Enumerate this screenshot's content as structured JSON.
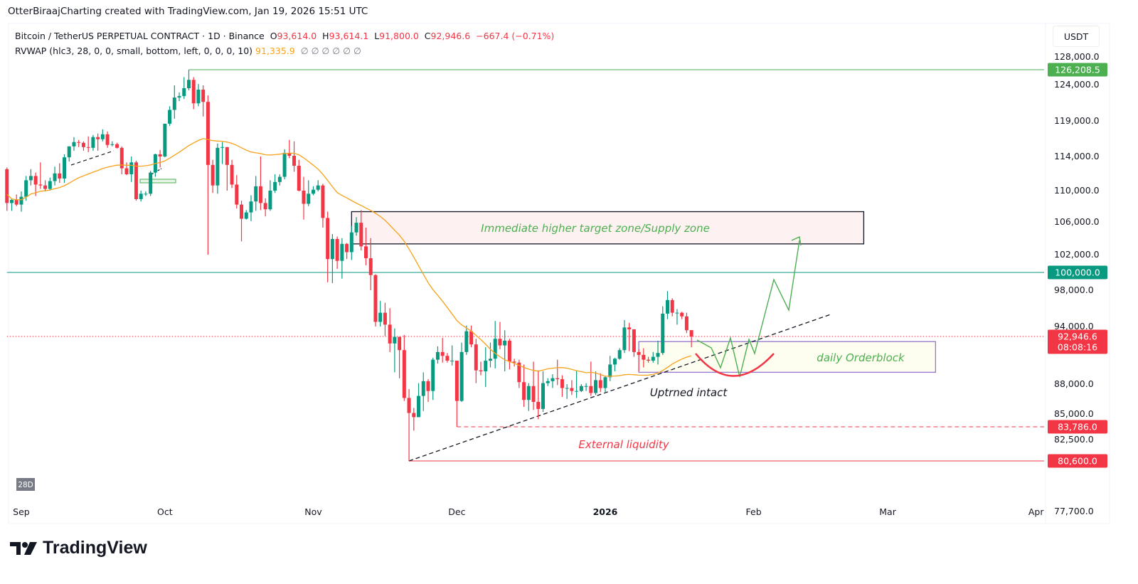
{
  "credit": "OtterBiraajCharting created with TradingView.com, Jan 19, 2026 15:51 UTC",
  "legend": {
    "symbol": "Bitcoin / TetherUS PERPETUAL CONTRACT · 1D · Binance",
    "o_label": "O",
    "o": "93,614.0",
    "h_label": "H",
    "h": "93,614.1",
    "l_label": "L",
    "l": "91,800.0",
    "c_label": "C",
    "c": "92,946.6",
    "change": "−667.4 (−0.71%)",
    "indicator": "RVWAP (hlc3, 28, 0, 0, small, bottom, left, 0, 0, 0, 10)",
    "indicator_value": "91,335.9",
    "indicator_empty": "∅  ∅  ∅  ∅  ∅  ∅"
  },
  "currency_button": "USDT",
  "period_badge": "28D",
  "logo_text": "TradingView",
  "chart_data": {
    "type": "candlestick",
    "title": "Bitcoin / TetherUS PERPETUAL CONTRACT · 1D · Binance",
    "y_scale": "log",
    "y_range": [
      77700,
      128000
    ],
    "x_range": [
      "2025-08-29",
      "2026-04-05"
    ],
    "grid": false,
    "colors": {
      "up": "#089981",
      "down": "#f23645",
      "rvwap": "#f7a21b"
    },
    "price_ticks": [
      "128,000.0",
      "124,000.0",
      "119,000.0",
      "114,000.0",
      "110,000.0",
      "106,000.0",
      "102,000.0",
      "98,000.0",
      "94,000.0",
      "88,000.0",
      "85,000.0",
      "82,500.0",
      "77,700.0"
    ],
    "price_tick_values": [
      128000,
      124000,
      119000,
      114000,
      110000,
      106000,
      102000,
      98000,
      94000,
      88000,
      85000,
      82500,
      77700
    ],
    "time_ticks": [
      {
        "label": "Sep",
        "date": "2025-09-01",
        "bold": false
      },
      {
        "label": "Oct",
        "date": "2025-10-01",
        "bold": false
      },
      {
        "label": "Nov",
        "date": "2025-11-01",
        "bold": false
      },
      {
        "label": "Dec",
        "date": "2025-12-01",
        "bold": false
      },
      {
        "label": "2026",
        "date": "2026-01-01",
        "bold": true
      },
      {
        "label": "Feb",
        "date": "2026-02-01",
        "bold": false
      },
      {
        "label": "Mar",
        "date": "2026-03-01",
        "bold": false
      },
      {
        "label": "Apr",
        "date": "2026-04-01",
        "bold": false
      }
    ],
    "candles_columns": [
      "date",
      "open",
      "high",
      "low",
      "close"
    ],
    "candles": [
      [
        "2025-08-29",
        112500,
        112700,
        107400,
        108400
      ],
      [
        "2025-08-30",
        108400,
        108900,
        107400,
        108800
      ],
      [
        "2025-08-31",
        108800,
        109500,
        108000,
        108200
      ],
      [
        "2025-09-01",
        108200,
        109900,
        107300,
        109200
      ],
      [
        "2025-09-02",
        109200,
        111700,
        108700,
        111200
      ],
      [
        "2025-09-03",
        111200,
        112500,
        110600,
        111700
      ],
      [
        "2025-09-04",
        111700,
        112100,
        109300,
        110700
      ],
      [
        "2025-09-05",
        110700,
        113300,
        110200,
        110600
      ],
      [
        "2025-09-06",
        110600,
        111200,
        109900,
        110200
      ],
      [
        "2025-09-07",
        110200,
        111500,
        110000,
        111100
      ],
      [
        "2025-09-08",
        111100,
        112800,
        110600,
        112000
      ],
      [
        "2025-09-09",
        112000,
        113200,
        110900,
        111400
      ],
      [
        "2025-09-10",
        111400,
        114300,
        110900,
        113900
      ],
      [
        "2025-09-11",
        113900,
        115400,
        113400,
        115400
      ],
      [
        "2025-09-12",
        115400,
        116700,
        114800,
        116000
      ],
      [
        "2025-09-13",
        116000,
        116300,
        115300,
        115900
      ],
      [
        "2025-09-14",
        115900,
        116100,
        114800,
        115300
      ],
      [
        "2025-09-15",
        115300,
        116800,
        114600,
        115200
      ],
      [
        "2025-09-16",
        115200,
        117000,
        114800,
        116700
      ],
      [
        "2025-09-17",
        116700,
        117200,
        114800,
        116400
      ],
      [
        "2025-09-18",
        116400,
        117800,
        116100,
        117100
      ],
      [
        "2025-09-19",
        117100,
        117500,
        115200,
        115600
      ],
      [
        "2025-09-20",
        115600,
        116100,
        115400,
        115700
      ],
      [
        "2025-09-21",
        115700,
        115900,
        115100,
        115200
      ],
      [
        "2025-09-22",
        115200,
        115400,
        111900,
        112600
      ],
      [
        "2025-09-23",
        112600,
        113300,
        111800,
        111900
      ],
      [
        "2025-09-24",
        111900,
        114000,
        111000,
        113300
      ],
      [
        "2025-09-25",
        113300,
        113500,
        108700,
        108900
      ],
      [
        "2025-09-26",
        108900,
        110000,
        108600,
        109600
      ],
      [
        "2025-09-27",
        109600,
        109900,
        109300,
        109600
      ],
      [
        "2025-09-28",
        109600,
        112300,
        109300,
        112100
      ],
      [
        "2025-09-29",
        112100,
        114400,
        111600,
        114300
      ],
      [
        "2025-09-30",
        114300,
        114900,
        112700,
        114000
      ],
      [
        "2025-10-01",
        114000,
        118600,
        113900,
        118600
      ],
      [
        "2025-10-02",
        118600,
        121000,
        118300,
        120500
      ],
      [
        "2025-10-03",
        120500,
        123900,
        119300,
        122200
      ],
      [
        "2025-10-04",
        122200,
        122900,
        121700,
        122400
      ],
      [
        "2025-10-05",
        122400,
        125100,
        122000,
        123500
      ],
      [
        "2025-10-06",
        123500,
        126208.5,
        123200,
        124700
      ],
      [
        "2025-10-07",
        124700,
        125100,
        120600,
        121400
      ],
      [
        "2025-10-08",
        121400,
        124100,
        121000,
        123300
      ],
      [
        "2025-10-09",
        123300,
        123900,
        119600,
        121600
      ],
      [
        "2025-10-10",
        121600,
        122500,
        102000,
        113000
      ],
      [
        "2025-10-11",
        113000,
        113600,
        109700,
        110600
      ],
      [
        "2025-10-12",
        110600,
        115800,
        109600,
        115200
      ],
      [
        "2025-10-13",
        115200,
        116000,
        113100,
        115300
      ],
      [
        "2025-10-14",
        115300,
        115300,
        110000,
        113000
      ],
      [
        "2025-10-15",
        113000,
        113600,
        110300,
        110700
      ],
      [
        "2025-10-16",
        110700,
        111800,
        107700,
        108200
      ],
      [
        "2025-10-17",
        108200,
        108700,
        103600,
        106400
      ],
      [
        "2025-10-18",
        106400,
        107500,
        106300,
        107200
      ],
      [
        "2025-10-19",
        107200,
        109400,
        106100,
        108600
      ],
      [
        "2025-10-20",
        108600,
        111700,
        107400,
        110500
      ],
      [
        "2025-10-21",
        110500,
        114000,
        107500,
        108400
      ],
      [
        "2025-10-22",
        108400,
        109000,
        106700,
        107600
      ],
      [
        "2025-10-23",
        107600,
        111200,
        107400,
        110000
      ],
      [
        "2025-10-24",
        110000,
        111900,
        109700,
        111000
      ],
      [
        "2025-10-25",
        111000,
        111900,
        110600,
        111600
      ],
      [
        "2025-10-26",
        111600,
        115000,
        111300,
        114500
      ],
      [
        "2025-10-27",
        114500,
        116300,
        113800,
        114100
      ],
      [
        "2025-10-28",
        114100,
        116100,
        112200,
        112900
      ],
      [
        "2025-10-29",
        112900,
        113600,
        109900,
        110000
      ],
      [
        "2025-10-30",
        110000,
        111600,
        106300,
        108300
      ],
      [
        "2025-10-31",
        108300,
        111200,
        108000,
        109600
      ],
      [
        "2025-11-01",
        109600,
        110500,
        109400,
        110100
      ],
      [
        "2025-11-02",
        110100,
        111200,
        109900,
        110600
      ],
      [
        "2025-11-03",
        110600,
        110800,
        105300,
        106500
      ],
      [
        "2025-11-04",
        106500,
        107300,
        98900,
        101500
      ],
      [
        "2025-11-05",
        101500,
        104500,
        98800,
        103900
      ],
      [
        "2025-11-06",
        103900,
        104200,
        100400,
        101300
      ],
      [
        "2025-11-07",
        101300,
        104000,
        99300,
        103300
      ],
      [
        "2025-11-08",
        103300,
        103400,
        101500,
        102300
      ],
      [
        "2025-11-09",
        102300,
        105500,
        101400,
        104700
      ],
      [
        "2025-11-10",
        104700,
        106600,
        104300,
        105900
      ],
      [
        "2025-11-11",
        105900,
        107500,
        102500,
        103000
      ],
      [
        "2025-11-12",
        103000,
        105300,
        100800,
        101600
      ],
      [
        "2025-11-13",
        101600,
        104000,
        98000,
        99700
      ],
      [
        "2025-11-14",
        99700,
        99800,
        94000,
        94500
      ],
      [
        "2025-11-15",
        94500,
        96800,
        94000,
        95500
      ],
      [
        "2025-11-16",
        95500,
        96600,
        93000,
        94200
      ],
      [
        "2025-11-17",
        94200,
        96000,
        91300,
        92200
      ],
      [
        "2025-11-18",
        92200,
        93800,
        89200,
        92900
      ],
      [
        "2025-11-19",
        92900,
        92900,
        88600,
        91500
      ],
      [
        "2025-11-20",
        91500,
        93100,
        86300,
        86600
      ],
      [
        "2025-11-21",
        86600,
        87500,
        80600,
        85100
      ],
      [
        "2025-11-22",
        85100,
        85600,
        83400,
        84700
      ],
      [
        "2025-11-23",
        84700,
        88100,
        84700,
        86800
      ],
      [
        "2025-11-24",
        86800,
        89200,
        85300,
        88300
      ],
      [
        "2025-11-25",
        88300,
        88500,
        86200,
        87300
      ],
      [
        "2025-11-26",
        87300,
        90700,
        86400,
        90500
      ],
      [
        "2025-11-27",
        90500,
        91900,
        90100,
        91300
      ],
      [
        "2025-11-28",
        91300,
        92800,
        90200,
        90900
      ],
      [
        "2025-11-29",
        90900,
        91200,
        90200,
        90400
      ],
      [
        "2025-11-30",
        90400,
        92000,
        89900,
        90400
      ],
      [
        "2025-12-01",
        90400,
        90400,
        83786,
        86300
      ],
      [
        "2025-12-02",
        86300,
        92300,
        86200,
        91300
      ],
      [
        "2025-12-03",
        91300,
        94100,
        91000,
        93500
      ],
      [
        "2025-12-04",
        93500,
        94100,
        91800,
        92100
      ],
      [
        "2025-12-05",
        92100,
        92700,
        88100,
        89400
      ],
      [
        "2025-12-06",
        89400,
        90300,
        88900,
        89300
      ],
      [
        "2025-12-07",
        89300,
        91800,
        87700,
        90400
      ],
      [
        "2025-12-08",
        90400,
        92300,
        89700,
        90600
      ],
      [
        "2025-12-09",
        90600,
        94600,
        89600,
        92700
      ],
      [
        "2025-12-10",
        92700,
        94500,
        91600,
        92000
      ],
      [
        "2025-12-11",
        92000,
        93600,
        89300,
        92500
      ],
      [
        "2025-12-12",
        92500,
        92700,
        89500,
        90300
      ],
      [
        "2025-12-13",
        90300,
        90600,
        89800,
        90200
      ],
      [
        "2025-12-14",
        90200,
        90500,
        87600,
        88200
      ],
      [
        "2025-12-15",
        88200,
        90000,
        85700,
        86400
      ],
      [
        "2025-12-16",
        86400,
        88100,
        85300,
        87800
      ],
      [
        "2025-12-17",
        87800,
        90300,
        85400,
        86200
      ],
      [
        "2025-12-18",
        86200,
        89400,
        84500,
        85500
      ],
      [
        "2025-12-19",
        85500,
        89300,
        85200,
        88100
      ],
      [
        "2025-12-20",
        88100,
        88600,
        87800,
        88300
      ],
      [
        "2025-12-21",
        88300,
        89000,
        87600,
        88600
      ],
      [
        "2025-12-22",
        88600,
        90500,
        87900,
        88500
      ],
      [
        "2025-12-23",
        88500,
        88900,
        86700,
        87600
      ],
      [
        "2025-12-24",
        87600,
        88000,
        86500,
        87600
      ],
      [
        "2025-12-25",
        87600,
        88400,
        86900,
        87300
      ],
      [
        "2025-12-26",
        87300,
        89400,
        86600,
        87300
      ],
      [
        "2025-12-27",
        87300,
        88000,
        87200,
        87800
      ],
      [
        "2025-12-28",
        87800,
        88100,
        87300,
        87800
      ],
      [
        "2025-12-29",
        87800,
        90300,
        86800,
        87100
      ],
      [
        "2025-12-30",
        87100,
        89300,
        86900,
        88400
      ],
      [
        "2025-12-31",
        88400,
        89100,
        87200,
        87600
      ],
      [
        "2026-01-01",
        87600,
        88800,
        87200,
        88700
      ],
      [
        "2026-01-02",
        88700,
        90900,
        88300,
        90000
      ],
      [
        "2026-01-03",
        90000,
        90700,
        89300,
        90600
      ],
      [
        "2026-01-04",
        90600,
        91700,
        90500,
        91500
      ],
      [
        "2026-01-05",
        91500,
        94700,
        91200,
        93900
      ],
      [
        "2026-01-06",
        93900,
        94400,
        91400,
        93700
      ],
      [
        "2026-01-07",
        93700,
        93700,
        90800,
        91300
      ],
      [
        "2026-01-08",
        91300,
        91600,
        89300,
        91000
      ],
      [
        "2026-01-09",
        91000,
        91700,
        89700,
        90500
      ],
      [
        "2026-01-10",
        90500,
        90800,
        90200,
        90400
      ],
      [
        "2026-01-11",
        90400,
        91300,
        90200,
        90800
      ],
      [
        "2026-01-12",
        90800,
        92500,
        90000,
        91200
      ],
      [
        "2026-01-13",
        91200,
        96200,
        91000,
        95400
      ],
      [
        "2026-01-14",
        95400,
        97900,
        94800,
        96900
      ],
      [
        "2026-01-15",
        96900,
        97100,
        95100,
        95500
      ],
      [
        "2026-01-16",
        95500,
        95900,
        94200,
        95500
      ],
      [
        "2026-01-17",
        95500,
        95600,
        94800,
        95100
      ],
      [
        "2026-01-18",
        95100,
        95500,
        93300,
        93600
      ],
      [
        "2026-01-19",
        93614,
        93614.1,
        91800,
        92946.6
      ]
    ],
    "rvwap_current": 91335.9,
    "levels": [
      {
        "name": "all-time-high",
        "price": 126208.5,
        "label": "126,208.5",
        "from": "2025-10-06",
        "color": "#4caf50",
        "style": "solid"
      },
      {
        "name": "round-number",
        "price": 100000,
        "label": "100,000.0",
        "from": "2025-08-29",
        "color": "#089981",
        "style": "solid"
      },
      {
        "name": "last-price",
        "price": 92946.6,
        "label": "92,946.6",
        "countdown": "08:08:16",
        "from": "2025-08-29",
        "color": "#f23645",
        "style": "dotted"
      },
      {
        "name": "december-low",
        "price": 83786,
        "label": "83,786.0",
        "from": "2025-12-01",
        "color": "#f23645",
        "style": "dashed"
      },
      {
        "name": "november-low",
        "price": 80600,
        "label": "80,600.0",
        "from": "2025-11-21",
        "color": "#f23645",
        "style": "solid"
      }
    ],
    "zones": [
      {
        "name": "supply-zone",
        "from": "2025-11-09",
        "to": "2026-02-24",
        "top": 107300,
        "bottom": 103300,
        "fill": "#fdf1f1",
        "stroke": "#131722",
        "label": "Immediate higher target zone/Supply zone",
        "label_color": "#4caf50"
      },
      {
        "name": "daily-orderblock",
        "from": "2026-01-08",
        "to": "2026-03-11",
        "top": 92400,
        "bottom": 89200,
        "fill": "#fdfdf0",
        "stroke": "#9575cd",
        "label": "daily Orderblock",
        "label_color": "#4caf50"
      }
    ],
    "trendline": {
      "from": [
        "2025-11-21",
        80600
      ],
      "to": [
        "2026-02-17",
        95300
      ],
      "color": "#131722",
      "style": "dashed"
    },
    "annotations": {
      "uptrend": {
        "text": "Uptrned intact",
        "color": "#131722"
      },
      "liquidity": {
        "text": "External liquidity",
        "color": "#f23645"
      }
    }
  }
}
